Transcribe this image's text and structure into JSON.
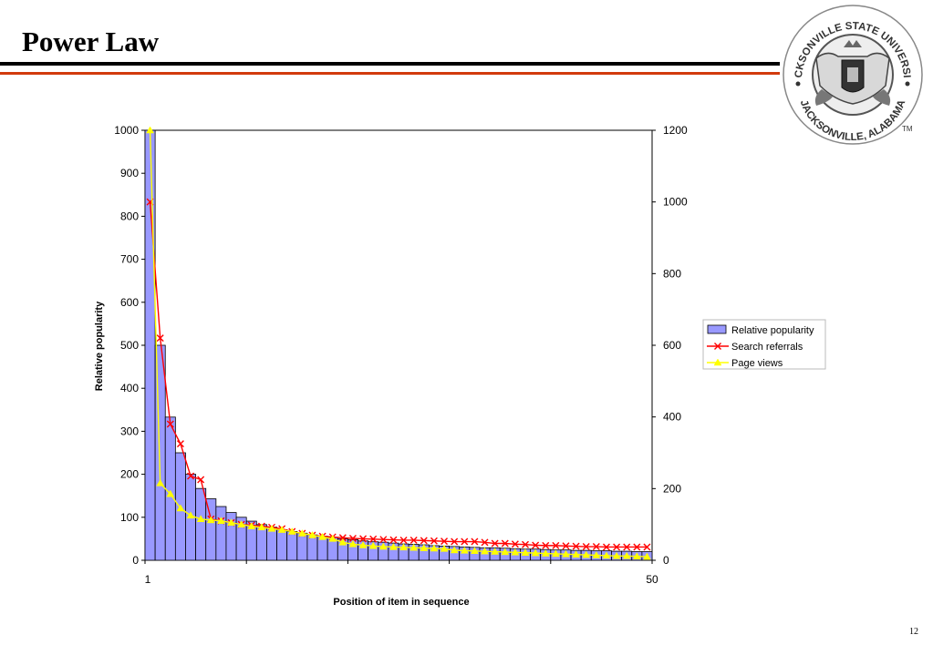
{
  "slide": {
    "title": "Power Law",
    "number": "12",
    "logo": {
      "name": "jacksonville-state-university-seal",
      "text_top": "JACKSONVILLE STATE UNIVERSITY",
      "text_bottom": "JACKSONVILLE, ALABAMA",
      "mark": "TM"
    },
    "colors": {
      "title_rule": "#000000",
      "accent_rule": "#d23a0c"
    }
  },
  "chart_data": {
    "type": "bar",
    "x": [
      1,
      2,
      3,
      4,
      5,
      6,
      7,
      8,
      9,
      10,
      11,
      12,
      13,
      14,
      15,
      16,
      17,
      18,
      19,
      20,
      21,
      22,
      23,
      24,
      25,
      26,
      27,
      28,
      29,
      30,
      31,
      32,
      33,
      34,
      35,
      36,
      37,
      38,
      39,
      40,
      41,
      42,
      43,
      44,
      45,
      46,
      47,
      48,
      49,
      50
    ],
    "x_tick_labels": [
      "1",
      "50"
    ],
    "xlabel": "Position of item in sequence",
    "ylabel": "Relative popularity",
    "y_left": {
      "ticks": [
        0,
        100,
        200,
        300,
        400,
        500,
        600,
        700,
        800,
        900,
        1000
      ],
      "ylim": [
        0,
        1000
      ]
    },
    "y_right": {
      "ticks": [
        0,
        200,
        400,
        600,
        800,
        1000,
        1200
      ],
      "ylim": [
        0,
        1200
      ]
    },
    "series": [
      {
        "name": "Relative popularity",
        "kind": "bar",
        "axis": "left",
        "color": "#9999ff",
        "values": [
          1000,
          500,
          333,
          250,
          200,
          167,
          143,
          125,
          111,
          100,
          91,
          83,
          77,
          71,
          67,
          63,
          59,
          56,
          53,
          50,
          48,
          45,
          43,
          42,
          40,
          38,
          37,
          36,
          34,
          33,
          32,
          31,
          30,
          29,
          29,
          28,
          27,
          26,
          26,
          25,
          24,
          24,
          23,
          23,
          22,
          22,
          21,
          21,
          20,
          20
        ]
      },
      {
        "name": "Search referrals",
        "kind": "line",
        "axis": "right",
        "color": "#ff0000",
        "marker": "x",
        "values": [
          1000,
          620,
          380,
          325,
          235,
          225,
          115,
          110,
          105,
          100,
          98,
          95,
          92,
          88,
          80,
          75,
          70,
          67,
          65,
          63,
          61,
          60,
          59,
          58,
          57,
          56,
          56,
          55,
          54,
          53,
          52,
          52,
          52,
          50,
          47,
          47,
          45,
          44,
          42,
          41,
          41,
          40,
          39,
          38,
          38,
          37,
          37,
          37,
          37,
          37
        ]
      },
      {
        "name": "Page views",
        "kind": "line",
        "axis": "right",
        "color": "#ffff00",
        "marker": "triangle",
        "values": [
          1200,
          215,
          185,
          145,
          125,
          115,
          112,
          110,
          105,
          100,
          95,
          92,
          88,
          85,
          80,
          75,
          70,
          65,
          60,
          50,
          45,
          42,
          40,
          38,
          37,
          36,
          35,
          34,
          33,
          32,
          28,
          27,
          26,
          25,
          24,
          23,
          22,
          21,
          20,
          19,
          18,
          17,
          16,
          15,
          14,
          13,
          12,
          12,
          11,
          10
        ]
      }
    ],
    "legend": {
      "placement": "right"
    },
    "grid": false
  }
}
